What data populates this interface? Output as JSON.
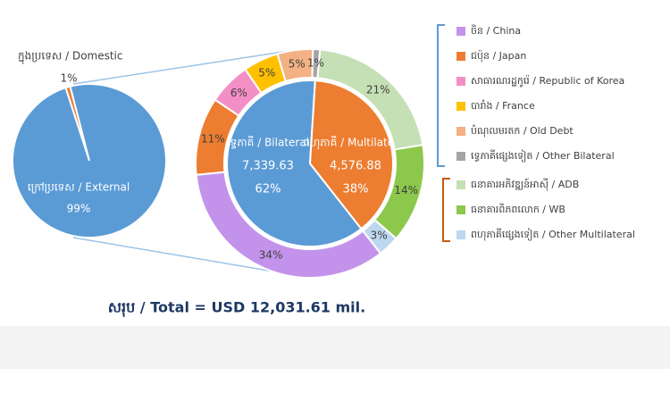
{
  "chart_data": [
    {
      "type": "pie",
      "categories": [
        "ក្នុងប្រទេស / Domestic",
        "ក្រៅប្រទេស / External"
      ],
      "values": [
        1,
        99
      ],
      "value_labels": [
        "1%",
        "99%"
      ],
      "colors": [
        "#ed7d31",
        "#5b9bd5"
      ]
    },
    {
      "type": "donut-inner",
      "categories": [
        "ទ្វេភាគី / Bilateral",
        "ពហុភាគី / Multilateral"
      ],
      "values": [
        7339.63,
        4576.88
      ],
      "value_labels": [
        "7,339.63",
        "4,576.88"
      ],
      "percents": [
        62,
        38
      ],
      "percent_labels": [
        "62%",
        "38%"
      ],
      "colors": [
        "#5b9bd5",
        "#ed7d31"
      ]
    },
    {
      "type": "donut-ring",
      "categories": [
        "ចិន / China",
        "ជប៉ុន / Japan",
        "សាធារណរដ្ឋកូរ៉េ / Republic of Korea",
        "បារាំង / France",
        "បំណុលមរតក / Old Debt",
        "ទ្វេភាគីផ្សេងទៀត / Other Bilateral",
        "ធនាគារអភិវឌ្ឍន៍អាស៊ី / ADB",
        "ធនាគារពិភពលោក / WB",
        "ពហុភាគីផ្សេងទៀត / Other Multilateral"
      ],
      "values": [
        34,
        11,
        6,
        5,
        5,
        1,
        21,
        14,
        3
      ],
      "value_labels": [
        "34%",
        "11%",
        "6%",
        "5%",
        "5%",
        "1%",
        "21%",
        "14%",
        "3%"
      ],
      "colors": [
        "#c393ec",
        "#ed7d31",
        "#f48fc6",
        "#ffc000",
        "#f4b183",
        "#a5a5a5",
        "#c5e0b4",
        "#8cc84b",
        "#bdd7ee"
      ]
    }
  ],
  "total": "សរុប / Total = USD 12,031.61 mil."
}
